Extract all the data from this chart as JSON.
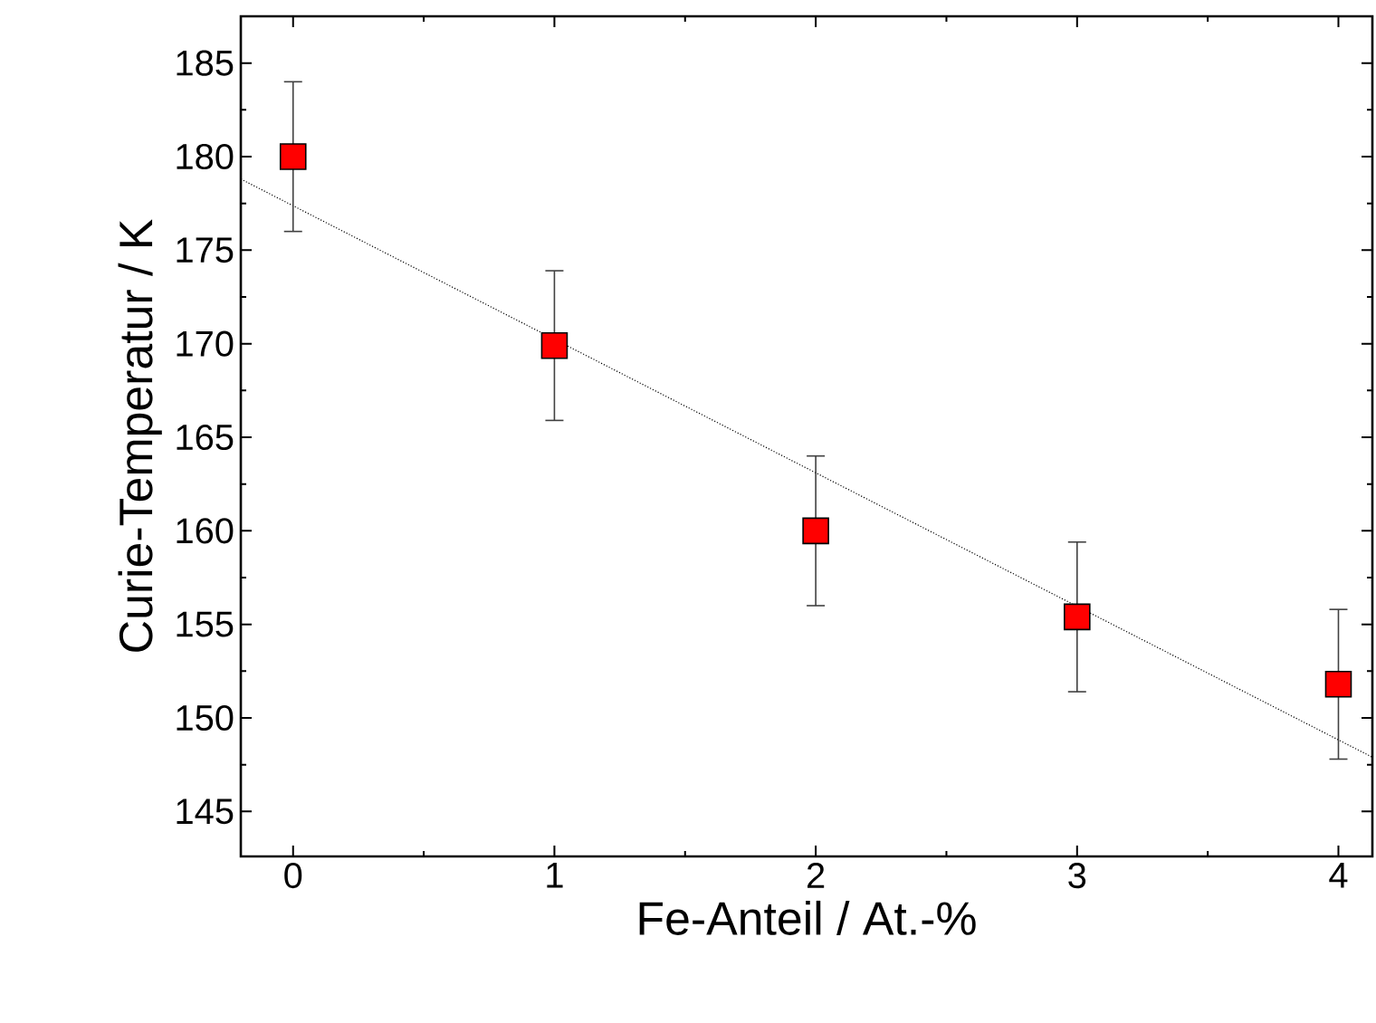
{
  "chart_data": {
    "type": "scatter",
    "xlabel": "Fe-Anteil / At.-%",
    "ylabel": "Curie-Temperatur / K",
    "x": [
      0,
      1,
      2,
      3,
      4
    ],
    "series": [
      {
        "color": "#ff0000",
        "marker": "square",
        "values": [
          180.0,
          169.9,
          160.0,
          155.4,
          151.8
        ],
        "errors": [
          4,
          4,
          4,
          4,
          4
        ]
      },
      {
        "type": "line",
        "color": "#000000",
        "line_style": "dotted",
        "marker": "none",
        "x": [
          -0.2,
          4.13
        ],
        "values": [
          178.8,
          147.9
        ]
      }
    ],
    "xlim": [
      -0.2,
      4.13
    ],
    "ylim": [
      142.6,
      187.5
    ],
    "xticks": [
      0,
      1,
      2,
      3,
      4
    ],
    "yticks": [
      145,
      150,
      155,
      160,
      165,
      170,
      175,
      180,
      185
    ],
    "grid": false
  }
}
